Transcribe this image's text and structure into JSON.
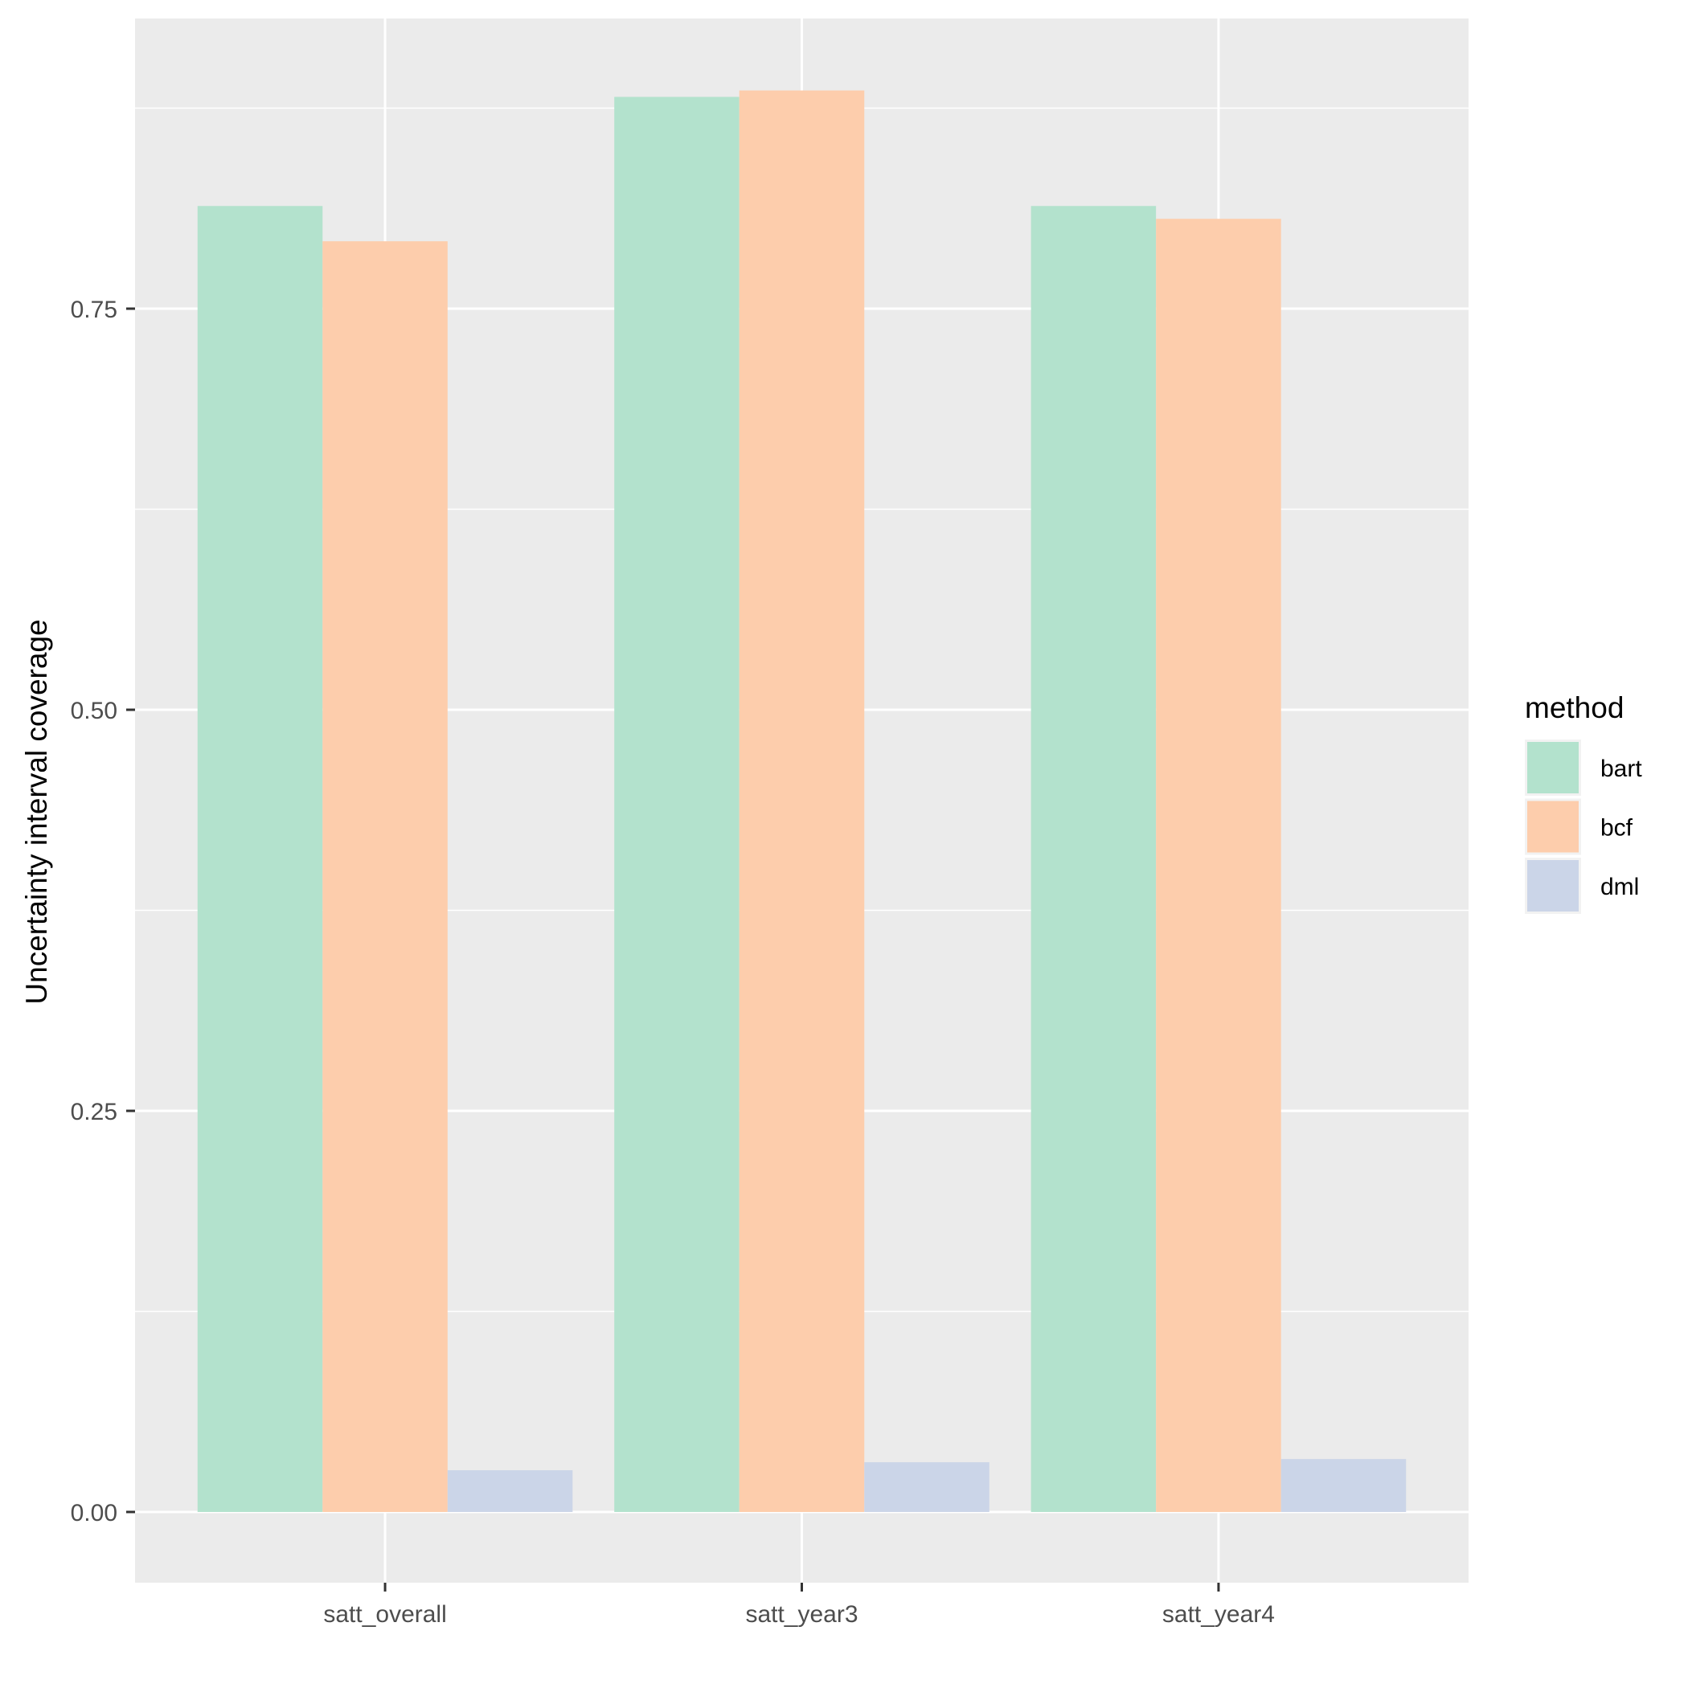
{
  "chart_data": {
    "type": "bar",
    "title": "",
    "xlabel": "",
    "ylabel": "Uncertainty interval coverage",
    "categories": [
      "satt_overall",
      "satt_year3",
      "satt_year4"
    ],
    "series": [
      {
        "name": "bart",
        "color": "#b3e2cd",
        "values": [
          0.814,
          0.882,
          0.814
        ]
      },
      {
        "name": "bcf",
        "color": "#fdcdac",
        "values": [
          0.792,
          0.886,
          0.806
        ]
      },
      {
        "name": "dml",
        "color": "#cbd5e8",
        "values": [
          0.026,
          0.031,
          0.033
        ]
      }
    ],
    "ylim": [
      -0.044,
      0.931
    ],
    "yticks": [
      0.0,
      0.25,
      0.5,
      0.75
    ],
    "ytick_labels": [
      "0.00",
      "0.25",
      "0.50",
      "0.75"
    ],
    "yminor": [
      0.125,
      0.375,
      0.625,
      0.875
    ],
    "grid": true,
    "position": "dodge",
    "legend": {
      "title": "method",
      "position": "right",
      "entries": [
        "bart",
        "bcf",
        "dml"
      ]
    }
  },
  "style": {
    "panel_bg": "#ebebeb",
    "grid_color": "#ffffff",
    "tick_color": "#333333",
    "tick_label_color": "#4d4d4d"
  }
}
